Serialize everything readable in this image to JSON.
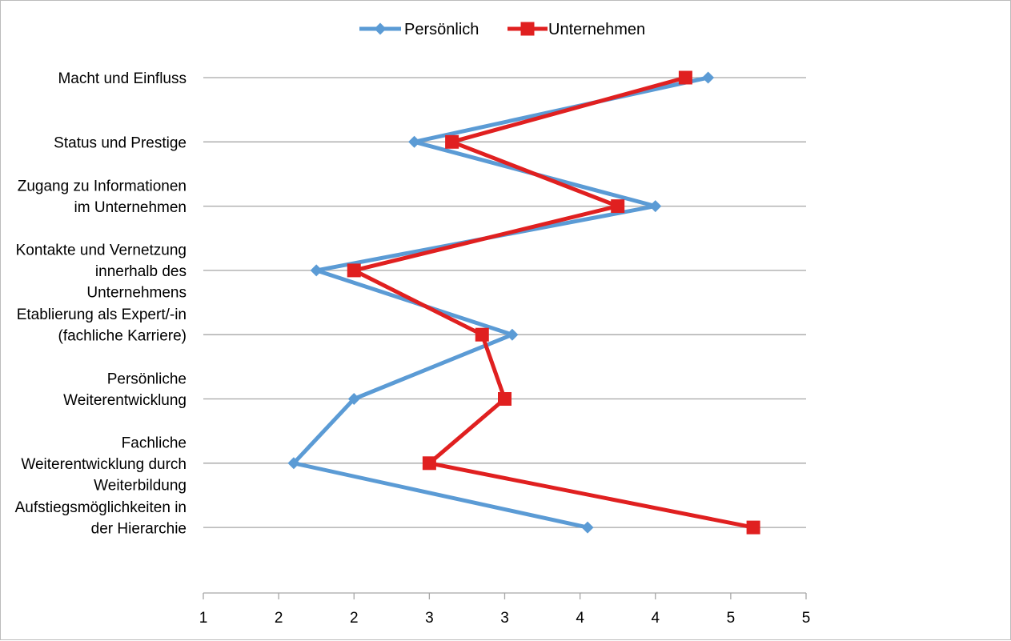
{
  "chart_data": {
    "type": "line",
    "orientation": "horizontal",
    "categories": [
      [
        "Macht und Einfluss"
      ],
      [
        "Status und Prestige"
      ],
      [
        "Zugang zu Informationen",
        "im Unternehmen"
      ],
      [
        "Kontakte und Vernetzung",
        "innerhalb des",
        "Unternehmens"
      ],
      [
        "Etablierung als Expert/-in",
        "(fachliche Karriere)"
      ],
      [
        "Persönliche",
        "Weiterentwicklung"
      ],
      [
        "Fachliche",
        "Weiterentwicklung durch",
        "Weiterbildung"
      ],
      [
        "Aufstiegsmöglichkeiten in",
        "der Hierarchie"
      ]
    ],
    "series": [
      {
        "name": "Persönlich",
        "color": "#5b9bd5",
        "marker": "diamond",
        "values": [
          4.35,
          2.4,
          4.0,
          1.75,
          3.05,
          2.0,
          1.6,
          3.55
        ]
      },
      {
        "name": "Unternehmen",
        "color": "#e02020",
        "marker": "square",
        "values": [
          4.2,
          2.65,
          3.75,
          2.0,
          2.85,
          3.0,
          2.5,
          4.65
        ]
      }
    ],
    "xlim": [
      1,
      5
    ],
    "x_tick_labels": [
      "1",
      "2",
      "2",
      "3",
      "3",
      "4",
      "4",
      "5",
      "5"
    ],
    "grid": "horizontal",
    "legend_position": "top"
  }
}
